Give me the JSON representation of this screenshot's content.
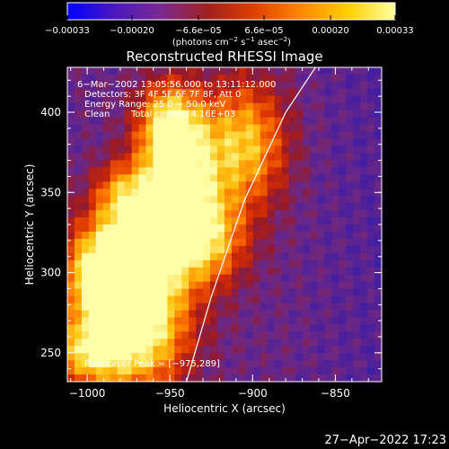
{
  "chart_data": {
    "type": "heatmap",
    "title": "Reconstructed RHESSI Image",
    "xlabel": "Heliocentric X (arcsec)",
    "ylabel": "Heliocentric Y (arcsec)",
    "xlim": [
      -1012,
      -822
    ],
    "ylim": [
      232,
      428
    ],
    "x_ticks": [
      {
        "v": -1000,
        "label": "−1000"
      },
      {
        "v": -950,
        "label": "−950"
      },
      {
        "v": -900,
        "label": "−900"
      },
      {
        "v": -850,
        "label": "−850"
      }
    ],
    "y_ticks": [
      {
        "v": 250,
        "label": "250"
      },
      {
        "v": 300,
        "label": "300"
      },
      {
        "v": 350,
        "label": "350"
      },
      {
        "v": 400,
        "label": "400"
      }
    ],
    "colorbar": {
      "range": [
        -0.00033,
        0.00033
      ],
      "ticks": [
        {
          "v": -0.00033,
          "label": "−0.00033"
        },
        {
          "v": -0.0002,
          "label": "−0.00020"
        },
        {
          "v": -6.6e-05,
          "label": "−6.6e−05"
        },
        {
          "v": 6.6e-05,
          "label": "6.6e−05"
        },
        {
          "v": 0.0002,
          "label": "0.00020"
        },
        {
          "v": 0.00033,
          "label": "0.00033"
        }
      ],
      "unit_text": "(photons cm",
      "unit_exp1": "−2",
      "unit_mid": " s",
      "unit_exp2": "−1",
      "unit_mid2": " asec",
      "unit_exp3": "−2",
      "unit_close": ")",
      "colors": [
        "#0000ff",
        "#4a18c0",
        "#7a2a90",
        "#a02020",
        "#e04000",
        "#ff8800",
        "#ffd000",
        "#ffffa0"
      ]
    },
    "annotations": {
      "time": "6−Mar−2002 13:05:56.000 to 13:11:12.000",
      "detectors": "Detectors: 3F 4F 5F 6F 7F 8F, Att 0",
      "energy": "Energy Range: 25.0 − 50.0 keV",
      "algorithm": "Clean",
      "counts": "Total counts: 4.16E+03",
      "peak": "Position of Peak = [−975,289]"
    },
    "limb_curve": [
      [
        -940,
        232
      ],
      [
        -925,
        285
      ],
      [
        -905,
        345
      ],
      [
        -880,
        400
      ],
      [
        -862,
        428
      ]
    ],
    "emission_blobs": [
      {
        "x": -970,
        "y": 265,
        "sx": 22,
        "sy": 28,
        "a": 1.0
      },
      {
        "x": -990,
        "y": 300,
        "sx": 18,
        "sy": 22,
        "a": 0.9
      },
      {
        "x": -960,
        "y": 320,
        "sx": 20,
        "sy": 24,
        "a": 0.85
      },
      {
        "x": -945,
        "y": 360,
        "sx": 16,
        "sy": 24,
        "a": 0.9
      },
      {
        "x": -950,
        "y": 395,
        "sx": 14,
        "sy": 18,
        "a": 0.75
      },
      {
        "x": -905,
        "y": 380,
        "sx": 18,
        "sy": 28,
        "a": 0.75
      },
      {
        "x": -925,
        "y": 320,
        "sx": 16,
        "sy": 20,
        "a": 0.6
      },
      {
        "x": -1000,
        "y": 250,
        "sx": 14,
        "sy": 14,
        "a": 0.6
      },
      {
        "x": -980,
        "y": 350,
        "sx": 12,
        "sy": 14,
        "a": 0.45
      }
    ],
    "timestamp": "27−Apr−2022 17:23"
  }
}
